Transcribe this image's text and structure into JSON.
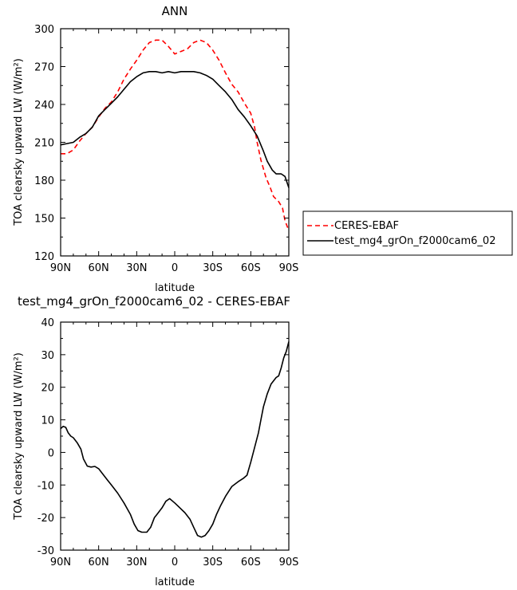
{
  "chart_data": [
    {
      "type": "line",
      "title": "ANN",
      "xlabel": "latitude",
      "ylabel": "TOA clearsky upward LW (W/m²)",
      "xlim": [
        90,
        -90
      ],
      "ylim": [
        120,
        300
      ],
      "xticks": [
        {
          "value": 90,
          "label": "90N"
        },
        {
          "value": 60,
          "label": "60N"
        },
        {
          "value": 30,
          "label": "30N"
        },
        {
          "value": 0,
          "label": "0"
        },
        {
          "value": -30,
          "label": "30S"
        },
        {
          "value": -60,
          "label": "60S"
        },
        {
          "value": -90,
          "label": "90S"
        }
      ],
      "yticks": [
        {
          "value": 300,
          "label": "300"
        },
        {
          "value": 270,
          "label": "270"
        },
        {
          "value": 240,
          "label": "240"
        },
        {
          "value": 210,
          "label": "210"
        },
        {
          "value": 180,
          "label": "180"
        },
        {
          "value": 150,
          "label": "150"
        },
        {
          "value": 120,
          "label": "120"
        }
      ],
      "legend": "right",
      "series": [
        {
          "name": "CERES-EBAF",
          "color": "#ff0000",
          "dashed": true,
          "points": [
            [
              90,
              201
            ],
            [
              85,
              201
            ],
            [
              80,
              204
            ],
            [
              75,
              211
            ],
            [
              70,
              217
            ],
            [
              65,
              222
            ],
            [
              60,
              230
            ],
            [
              55,
              237
            ],
            [
              50,
              242
            ],
            [
              45,
              250
            ],
            [
              40,
              260
            ],
            [
              35,
              268
            ],
            [
              30,
              275
            ],
            [
              25,
              283
            ],
            [
              20,
              289
            ],
            [
              15,
              291
            ],
            [
              10,
              291
            ],
            [
              5,
              286
            ],
            [
              0,
              280
            ],
            [
              -5,
              282
            ],
            [
              -10,
              284
            ],
            [
              -15,
              289
            ],
            [
              -20,
              291
            ],
            [
              -25,
              289
            ],
            [
              -30,
              283
            ],
            [
              -35,
              275
            ],
            [
              -40,
              265
            ],
            [
              -45,
              256
            ],
            [
              -50,
              250
            ],
            [
              -55,
              241
            ],
            [
              -60,
              233
            ],
            [
              -63,
              222
            ],
            [
              -65,
              210
            ],
            [
              -68,
              196
            ],
            [
              -72,
              182
            ],
            [
              -75,
              175
            ],
            [
              -78,
              167
            ],
            [
              -82,
              163
            ],
            [
              -85,
              158
            ],
            [
              -87,
              148
            ],
            [
              -90,
              140
            ]
          ]
        },
        {
          "name": "test_mg4_grOn_f2000cam6_02",
          "color": "#000000",
          "dashed": false,
          "points": [
            [
              90,
              208
            ],
            [
              85,
              209
            ],
            [
              80,
              210
            ],
            [
              75,
              214
            ],
            [
              70,
              217
            ],
            [
              65,
              222
            ],
            [
              60,
              231
            ],
            [
              55,
              236
            ],
            [
              50,
              241
            ],
            [
              45,
              246
            ],
            [
              40,
              252
            ],
            [
              35,
              258
            ],
            [
              30,
              262
            ],
            [
              25,
              265
            ],
            [
              20,
              266
            ],
            [
              15,
              266
            ],
            [
              10,
              265
            ],
            [
              5,
              266
            ],
            [
              0,
              265
            ],
            [
              -5,
              266
            ],
            [
              -10,
              266
            ],
            [
              -15,
              266
            ],
            [
              -20,
              265
            ],
            [
              -25,
              263
            ],
            [
              -30,
              260
            ],
            [
              -35,
              255
            ],
            [
              -40,
              250
            ],
            [
              -45,
              244
            ],
            [
              -50,
              236
            ],
            [
              -55,
              230
            ],
            [
              -60,
              223
            ],
            [
              -65,
              215
            ],
            [
              -70,
              203
            ],
            [
              -73,
              195
            ],
            [
              -77,
              188
            ],
            [
              -80,
              185
            ],
            [
              -84,
              185
            ],
            [
              -87,
              183
            ],
            [
              -89,
              177
            ],
            [
              -90,
              174
            ]
          ]
        }
      ]
    },
    {
      "type": "line",
      "title": "test_mg4_grOn_f2000cam6_02 - CERES-EBAF",
      "xlabel": "latitude",
      "ylabel": "TOA clearsky upward LW (W/m²)",
      "xlim": [
        90,
        -90
      ],
      "ylim": [
        -30,
        40
      ],
      "xticks": [
        {
          "value": 90,
          "label": "90N"
        },
        {
          "value": 60,
          "label": "60N"
        },
        {
          "value": 30,
          "label": "30N"
        },
        {
          "value": 0,
          "label": "0"
        },
        {
          "value": -30,
          "label": "30S"
        },
        {
          "value": -60,
          "label": "60S"
        },
        {
          "value": -90,
          "label": "90S"
        }
      ],
      "yticks": [
        {
          "value": 40,
          "label": "40"
        },
        {
          "value": 30,
          "label": "30"
        },
        {
          "value": 20,
          "label": "20"
        },
        {
          "value": 10,
          "label": "10"
        },
        {
          "value": 0,
          "label": "0"
        },
        {
          "value": -10,
          "label": "-10"
        },
        {
          "value": -20,
          "label": "-20"
        },
        {
          "value": -30,
          "label": "-30"
        }
      ],
      "series": [
        {
          "color": "#000000",
          "dashed": false,
          "points": [
            [
              90,
              7.3
            ],
            [
              88,
              8
            ],
            [
              86,
              7.7
            ],
            [
              84,
              6
            ],
            [
              82,
              5
            ],
            [
              80,
              4.5
            ],
            [
              77,
              3
            ],
            [
              74,
              1
            ],
            [
              72,
              -2
            ],
            [
              69,
              -4.2
            ],
            [
              66,
              -4.5
            ],
            [
              63,
              -4.3
            ],
            [
              60,
              -5
            ],
            [
              57,
              -6.5
            ],
            [
              53,
              -8.5
            ],
            [
              50,
              -10
            ],
            [
              45,
              -12.5
            ],
            [
              40,
              -15.5
            ],
            [
              35,
              -19
            ],
            [
              32,
              -22
            ],
            [
              29,
              -24
            ],
            [
              26,
              -24.5
            ],
            [
              22,
              -24.5
            ],
            [
              19,
              -23
            ],
            [
              16,
              -20
            ],
            [
              14,
              -19
            ],
            [
              10,
              -17
            ],
            [
              7,
              -15
            ],
            [
              4,
              -14.2
            ],
            [
              0,
              -15.5
            ],
            [
              -4,
              -17
            ],
            [
              -8,
              -18.5
            ],
            [
              -12,
              -20.5
            ],
            [
              -15,
              -23
            ],
            [
              -18,
              -25.5
            ],
            [
              -21,
              -26
            ],
            [
              -24,
              -25.5
            ],
            [
              -27,
              -24
            ],
            [
              -30,
              -22
            ],
            [
              -33,
              -19
            ],
            [
              -36,
              -16.5
            ],
            [
              -40,
              -13.5
            ],
            [
              -45,
              -10.5
            ],
            [
              -50,
              -9
            ],
            [
              -54,
              -8
            ],
            [
              -57,
              -7
            ],
            [
              -60,
              -3
            ],
            [
              -62,
              0
            ],
            [
              -64,
              3
            ],
            [
              -66,
              6
            ],
            [
              -68,
              10
            ],
            [
              -70,
              14
            ],
            [
              -73,
              18
            ],
            [
              -76,
              21
            ],
            [
              -80,
              23
            ],
            [
              -82,
              23.5
            ],
            [
              -84,
              26
            ],
            [
              -86,
              29
            ],
            [
              -88,
              31
            ],
            [
              -90,
              34
            ]
          ]
        }
      ]
    }
  ]
}
